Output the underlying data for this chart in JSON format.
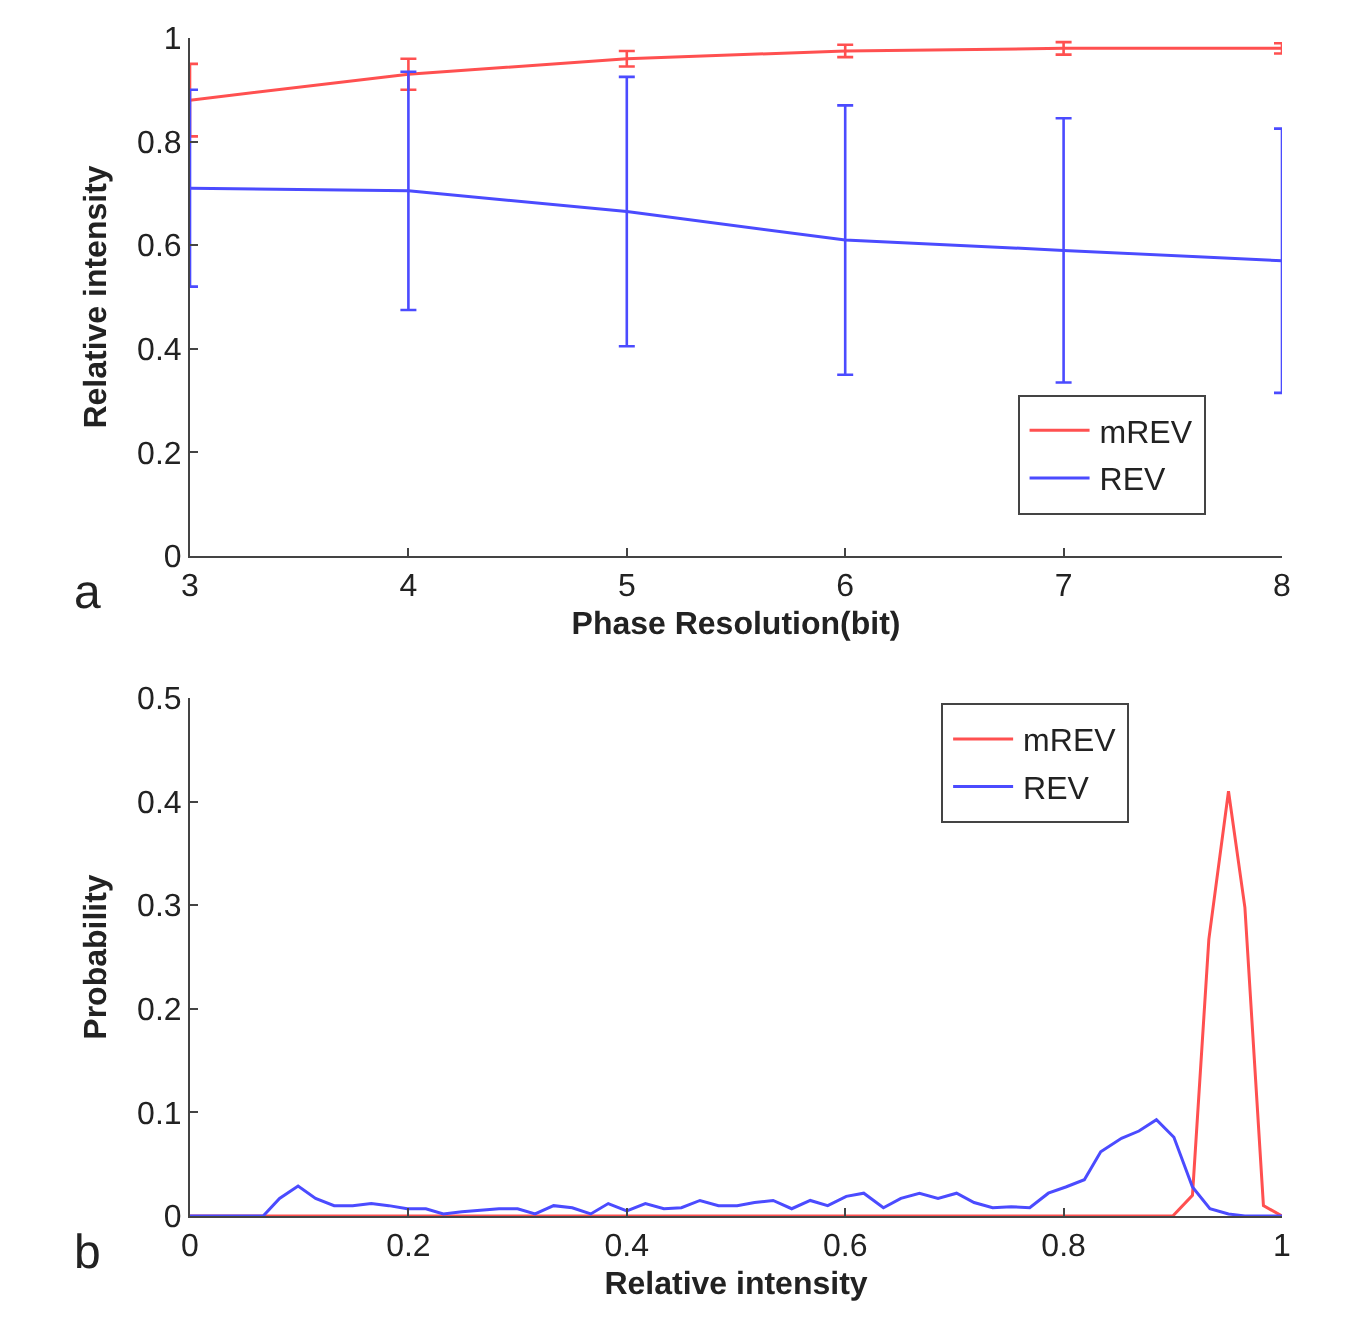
{
  "chart_data": [
    {
      "type": "line",
      "xlabel": "Phase Resolution(bit)",
      "ylabel": "Relative intensity",
      "x": [
        3,
        4,
        5,
        6,
        7,
        8
      ],
      "xlim": [
        3,
        8
      ],
      "xticks": [
        3,
        4,
        5,
        6,
        7,
        8
      ],
      "ylim": [
        0,
        1
      ],
      "yticks": [
        0,
        0.2,
        0.4,
        0.6,
        0.8,
        1
      ],
      "grid": false,
      "legend": "bottom right",
      "line_style": "solid",
      "annotations": [
        "a"
      ],
      "series": [
        {
          "name": "mREV",
          "color": "#ff5050",
          "values": [
            0.88,
            0.93,
            0.96,
            0.975,
            0.98,
            0.98
          ],
          "errors": [
            0.07,
            0.03,
            0.015,
            0.012,
            0.012,
            0.01
          ]
        },
        {
          "name": "REV",
          "color": "#4b4bff",
          "values": [
            0.71,
            0.705,
            0.665,
            0.61,
            0.59,
            0.57
          ],
          "errors": [
            0.19,
            0.23,
            0.26,
            0.26,
            0.255,
            0.255
          ]
        }
      ]
    },
    {
      "type": "line",
      "xlabel": "Relative intensity",
      "ylabel": "Probability",
      "xlim": [
        0,
        1
      ],
      "xticks": [
        0,
        0.2,
        0.4,
        0.6,
        0.8,
        1
      ],
      "ylim": [
        0,
        0.5
      ],
      "yticks": [
        0,
        0.1,
        0.2,
        0.3,
        0.4,
        0.5
      ],
      "grid": false,
      "legend": "top right",
      "line_style": "solid",
      "annotations": [
        "b"
      ],
      "series": [
        {
          "name": "mREV",
          "color": "#ff5050",
          "x": [
            0,
            0.9,
            0.918,
            0.933,
            0.951,
            0.966,
            0.983,
            1
          ],
          "values": [
            0,
            0,
            0.02,
            0.267,
            0.41,
            0.298,
            0.01,
            0
          ]
        },
        {
          "name": "REV",
          "color": "#4b4bff",
          "x": [
            0,
            0.067,
            0.082,
            0.099,
            0.115,
            0.132,
            0.149,
            0.166,
            0.182,
            0.199,
            0.216,
            0.232,
            0.249,
            0.283,
            0.3,
            0.316,
            0.333,
            0.35,
            0.367,
            0.383,
            0.4,
            0.417,
            0.434,
            0.45,
            0.467,
            0.484,
            0.501,
            0.517,
            0.534,
            0.551,
            0.568,
            0.584,
            0.601,
            0.617,
            0.635,
            0.651,
            0.668,
            0.685,
            0.702,
            0.718,
            0.735,
            0.752,
            0.769,
            0.786,
            0.802,
            0.819,
            0.834,
            0.853,
            0.869,
            0.885,
            0.901,
            0.918,
            0.934,
            0.951,
            0.966,
            1
          ],
          "values": [
            0,
            0,
            0.017,
            0.029,
            0.017,
            0.01,
            0.01,
            0.012,
            0.01,
            0.007,
            0.007,
            0.002,
            0.004,
            0.007,
            0.007,
            0.002,
            0.01,
            0.008,
            0.002,
            0.012,
            0.005,
            0.012,
            0.007,
            0.008,
            0.015,
            0.01,
            0.01,
            0.013,
            0.015,
            0.007,
            0.015,
            0.01,
            0.019,
            0.022,
            0.008,
            0.017,
            0.022,
            0.017,
            0.022,
            0.013,
            0.008,
            0.009,
            0.008,
            0.022,
            0.028,
            0.035,
            0.062,
            0.075,
            0.082,
            0.093,
            0.076,
            0.028,
            0.007,
            0.002,
            0,
            0
          ]
        }
      ]
    }
  ]
}
